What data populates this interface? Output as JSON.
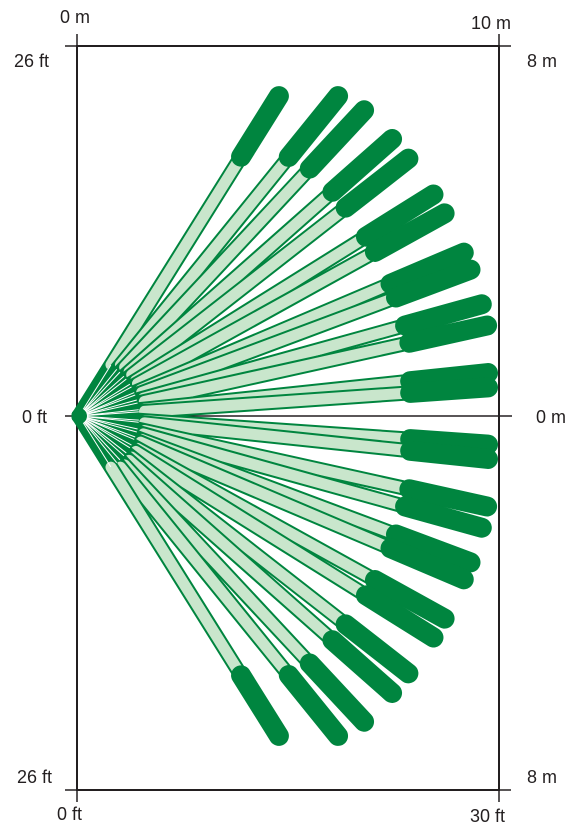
{
  "labels": {
    "top_left_m": "0 m",
    "top_right_m": "10 m",
    "left_top_ft": "26 ft",
    "right_top_m": "8 m",
    "left_mid_ft": "0 ft",
    "right_mid_m": "0 m",
    "left_bottom_ft": "26 ft",
    "right_bottom_m": "8 m",
    "bottom_left_ft": "0 ft",
    "bottom_right_ft": "30 ft"
  },
  "colors": {
    "dark_zone": "#00853f",
    "light_zone": "#c9e6cc",
    "outline": "#00853f",
    "frame": "#231f20"
  },
  "beams": [
    {
      "angle_deg": -58.0
    },
    {
      "angle_deg": -51.0
    },
    {
      "angle_deg": -47.0
    },
    {
      "angle_deg": -41.5
    },
    {
      "angle_deg": -38.0
    },
    {
      "angle_deg": -32.0
    },
    {
      "angle_deg": -29.0
    },
    {
      "angle_deg": -23.0
    },
    {
      "angle_deg": -20.5
    },
    {
      "angle_deg": -15.5
    },
    {
      "angle_deg": -12.5
    },
    {
      "angle_deg": -6.0
    },
    {
      "angle_deg": -4.0
    },
    {
      "angle_deg": 4.0
    },
    {
      "angle_deg": 6.0
    },
    {
      "angle_deg": 12.5
    },
    {
      "angle_deg": 15.5
    },
    {
      "angle_deg": 20.5
    },
    {
      "angle_deg": 23.0
    },
    {
      "angle_deg": 29.0
    },
    {
      "angle_deg": 32.0
    },
    {
      "angle_deg": 38.0
    },
    {
      "angle_deg": 41.5
    },
    {
      "angle_deg": 47.0
    },
    {
      "angle_deg": 51.0
    },
    {
      "angle_deg": 58.0
    }
  ]
}
